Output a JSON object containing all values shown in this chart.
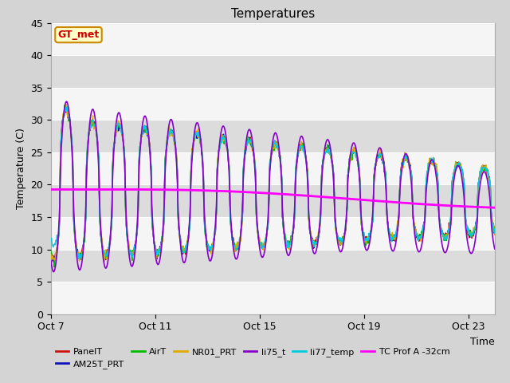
{
  "title": "Temperatures",
  "xlabel": "Time",
  "ylabel": "Temperature (C)",
  "ylim": [
    0,
    45
  ],
  "yticks": [
    0,
    5,
    10,
    15,
    20,
    25,
    30,
    35,
    40,
    45
  ],
  "xtick_labels": [
    "Oct 7",
    "Oct 11",
    "Oct 15",
    "Oct 19",
    "Oct 23"
  ],
  "xtick_offsets": [
    0,
    4,
    8,
    12,
    16
  ],
  "n_days": 17,
  "fig_bg": "#d4d4d4",
  "plot_bg": "#f5f5f5",
  "band_color": "#dcdcdc",
  "series": {
    "PanelT": {
      "color": "#cc1111",
      "lw": 1.0,
      "zorder": 4
    },
    "AM25T_PRT": {
      "color": "#1111bb",
      "lw": 1.0,
      "zorder": 4
    },
    "AirT": {
      "color": "#00bb00",
      "lw": 1.0,
      "zorder": 4
    },
    "NR01_PRT": {
      "color": "#ddaa00",
      "lw": 1.0,
      "zorder": 4
    },
    "li75_t": {
      "color": "#8800cc",
      "lw": 1.2,
      "zorder": 5
    },
    "li77_temp": {
      "color": "#00ccdd",
      "lw": 1.0,
      "zorder": 4
    },
    "TC Prof A -32cm": {
      "color": "#ff00ff",
      "lw": 2.0,
      "zorder": 6
    }
  },
  "annotation": {
    "text": "GT_met",
    "fontsize": 9,
    "text_color": "#cc0000",
    "bg_color": "#ffffc8",
    "border_color": "#cc8800"
  },
  "legend_ncol": 6,
  "legend_row2": [
    "TC Prof A -32cm"
  ]
}
